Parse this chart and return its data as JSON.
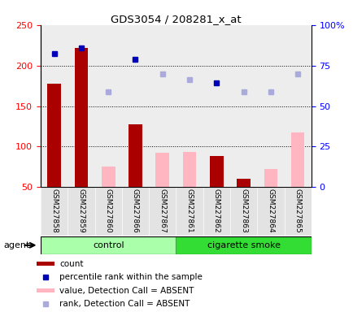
{
  "title": "GDS3054 / 208281_x_at",
  "samples": [
    "GSM227858",
    "GSM227859",
    "GSM227860",
    "GSM227866",
    "GSM227867",
    "GSM227861",
    "GSM227862",
    "GSM227863",
    "GSM227864",
    "GSM227865"
  ],
  "count_values": [
    178,
    222,
    null,
    128,
    null,
    null,
    88,
    60,
    null,
    null
  ],
  "count_absent_values": [
    null,
    null,
    75,
    null,
    92,
    93,
    null,
    null,
    72,
    118
  ],
  "rank_present_values": [
    215,
    222,
    null,
    208,
    null,
    null,
    179,
    null,
    null,
    null
  ],
  "rank_absent_values": [
    null,
    null,
    168,
    null,
    190,
    183,
    null,
    168,
    168,
    190
  ],
  "ylim_left": [
    50,
    250
  ],
  "left_ticks": [
    50,
    100,
    150,
    200,
    250
  ],
  "right_ticks": [
    0,
    25,
    50,
    75,
    100
  ],
  "right_tick_labels": [
    "0",
    "25",
    "50",
    "75",
    "100%"
  ],
  "group_control_color": "#AAFFAA",
  "group_smoke_color": "#33DD33",
  "bar_color_present": "#AA0000",
  "bar_color_absent": "#FFB6C1",
  "dot_color_present": "#0000BB",
  "dot_color_absent": "#AAAADD",
  "col_bg_color": "#CCCCCC",
  "legend_items": [
    {
      "label": "count",
      "color": "#AA0000",
      "type": "bar"
    },
    {
      "label": "percentile rank within the sample",
      "color": "#0000BB",
      "type": "dot"
    },
    {
      "label": "value, Detection Call = ABSENT",
      "color": "#FFB6C1",
      "type": "bar"
    },
    {
      "label": "rank, Detection Call = ABSENT",
      "color": "#AAAADD",
      "type": "dot"
    }
  ]
}
